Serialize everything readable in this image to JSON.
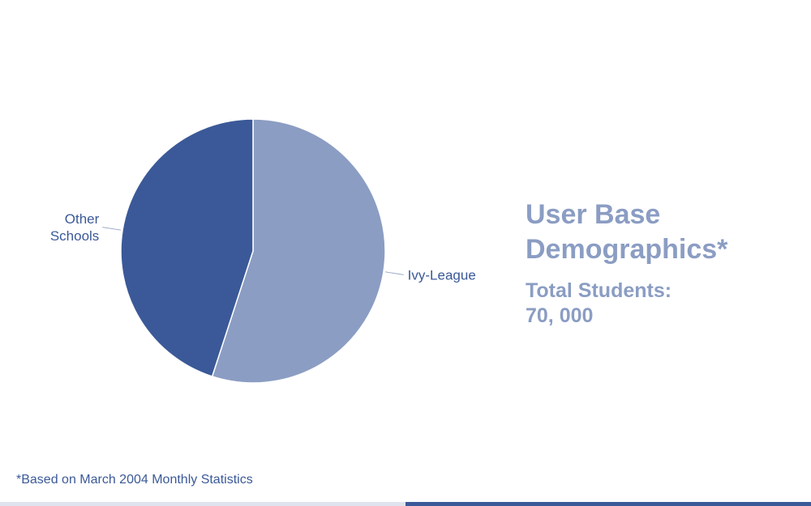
{
  "chart_data": {
    "type": "pie",
    "categories": [
      "Ivy-League",
      "Other Schools"
    ],
    "values": [
      55,
      45
    ],
    "colors": [
      "#8b9dc3",
      "#3b5998"
    ],
    "label_lines": [
      [
        "Ivy-League"
      ],
      [
        "Other",
        "Schools"
      ]
    ]
  },
  "slide": {
    "title": "User Base Demographics*",
    "subtitle": "Total Students:\n70, 000",
    "footnote": "*Based on March 2004 Monthly Statistics"
  },
  "colors": {
    "accent": "#3b5998",
    "light_accent": "#8b9dc3",
    "pale_bar": "#dfe3ee"
  }
}
